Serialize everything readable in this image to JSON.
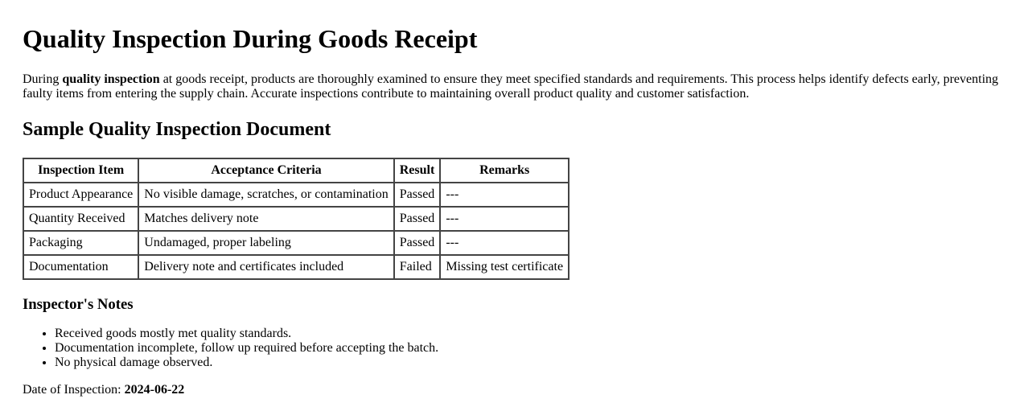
{
  "title": "Quality Inspection During Goods Receipt",
  "intro": {
    "before": "During ",
    "bold": "quality inspection",
    "after": " at goods receipt, products are thoroughly examined to ensure they meet specified standards and requirements. This process helps identify defects early, preventing faulty items from entering the supply chain. Accurate inspections contribute to maintaining overall product quality and customer satisfaction."
  },
  "section_title": "Sample Quality Inspection Document",
  "table": {
    "headers": [
      "Inspection Item",
      "Acceptance Criteria",
      "Result",
      "Remarks"
    ],
    "rows": [
      [
        "Product Appearance",
        "No visible damage, scratches, or contamination",
        "Passed",
        "---"
      ],
      [
        "Quantity Received",
        "Matches delivery note",
        "Passed",
        "---"
      ],
      [
        "Packaging",
        "Undamaged, proper labeling",
        "Passed",
        "---"
      ],
      [
        "Documentation",
        "Delivery note and certificates included",
        "Failed",
        "Missing test certificate"
      ]
    ]
  },
  "notes": {
    "title": "Inspector's Notes",
    "items": [
      "Received goods mostly met quality standards.",
      "Documentation incomplete, follow up required before accepting the batch.",
      "No physical damage observed."
    ]
  },
  "date": {
    "label": "Date of Inspection: ",
    "value": "2024-06-22"
  }
}
